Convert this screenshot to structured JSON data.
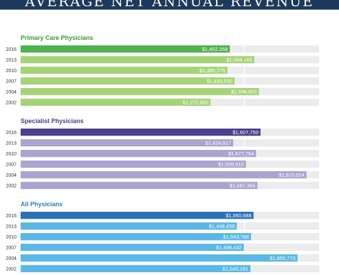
{
  "header": {
    "title": "AVERAGE NET ANNUAL REVENUE"
  },
  "chart_data": {
    "type": "bar",
    "orientation": "horizontal",
    "title": "AVERAGE NET ANNUAL REVENUE",
    "xlim": [
      0,
      2000000
    ],
    "grid": true,
    "groups": [
      {
        "name": "Primary Care Physicians",
        "title_color": "#3a9b3a",
        "colors": {
          "highlight": "#4fb24f",
          "regular": "#a7d378"
        },
        "categories": [
          "2016",
          "2013",
          "2010",
          "2007",
          "2004",
          "2002"
        ],
        "values": [
          1402268,
          1566165,
          1385775,
          1433532,
          1596852,
          1272862
        ],
        "labels": [
          "$1,402,268",
          "$1,566,165",
          "$1,385,775",
          "$1,433,532",
          "$1,596,852",
          "$1,272,862"
        ]
      },
      {
        "name": "Specialist Physicians",
        "title_color": "#4a3a8c",
        "colors": {
          "highlight": "#4d3f8f",
          "regular": "#aca4d0"
        },
        "categories": [
          "2016",
          "2013",
          "2010",
          "2007",
          "2004",
          "2002"
        ],
        "values": [
          1607750,
          1424917,
          1577764,
          1509910,
          1915524,
          1587355
        ],
        "labels": [
          "$1,607,750",
          "$1,424,917",
          "$1,577,764",
          "$1,509,910",
          "$1,915,524",
          "$1,587,355"
        ]
      },
      {
        "name": "All Physicians",
        "title_color": "#2a7bbf",
        "colors": {
          "highlight": "#2c72b8",
          "regular": "#5bb7e6"
        },
        "categories": [
          "2016",
          "2013",
          "2010",
          "2007",
          "2004",
          "2002"
        ],
        "values": [
          1560688,
          1448458,
          1543788,
          1496432,
          1855773,
          1540181
        ],
        "labels": [
          "$1,560,688",
          "$1,448,458",
          "$1,543,788",
          "$1,496,432",
          "$1,855,773",
          "$1,540,181"
        ]
      }
    ]
  }
}
